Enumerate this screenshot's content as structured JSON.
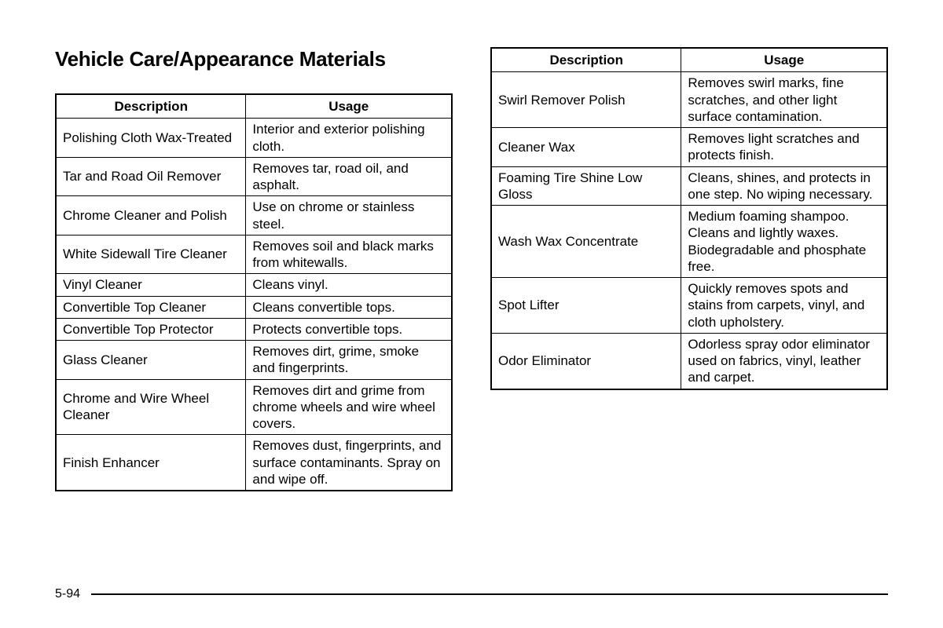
{
  "title": "Vehicle Care/Appearance Materials",
  "headers": {
    "desc": "Description",
    "usage": "Usage"
  },
  "pageNumber": "5-94",
  "tableLeft": {
    "rows": [
      {
        "desc": "Polishing Cloth Wax-Treated",
        "usage": "Interior and exterior polishing cloth."
      },
      {
        "desc": "Tar and Road Oil Remover",
        "usage": "Removes tar, road oil, and asphalt."
      },
      {
        "desc": "Chrome Cleaner and Polish",
        "usage": "Use on chrome or stainless steel."
      },
      {
        "desc": "White Sidewall Tire Cleaner",
        "usage": "Removes soil and black marks from whitewalls."
      },
      {
        "desc": "Vinyl Cleaner",
        "usage": "Cleans vinyl."
      },
      {
        "desc": "Convertible Top Cleaner",
        "usage": "Cleans convertible tops."
      },
      {
        "desc": "Convertible Top Protector",
        "usage": "Protects convertible tops."
      },
      {
        "desc": "Glass Cleaner",
        "usage": "Removes dirt, grime, smoke and fingerprints."
      },
      {
        "desc": "Chrome and Wire Wheel Cleaner",
        "usage": "Removes dirt and grime from chrome wheels and wire wheel covers."
      },
      {
        "desc": "Finish Enhancer",
        "usage": "Removes dust, fingerprints, and surface contaminants. Spray on and wipe off."
      }
    ]
  },
  "tableRight": {
    "rows": [
      {
        "desc": "Swirl Remover Polish",
        "usage": "Removes swirl marks, fine scratches, and other light surface contamination."
      },
      {
        "desc": "Cleaner Wax",
        "usage": "Removes light scratches and protects finish."
      },
      {
        "desc": "Foaming Tire Shine Low Gloss",
        "usage": "Cleans, shines, and protects in one step. No wiping necessary."
      },
      {
        "desc": "Wash Wax Concentrate",
        "usage": "Medium foaming shampoo. Cleans and lightly waxes. Biodegradable and phosphate free."
      },
      {
        "desc": "Spot Lifter",
        "usage": "Quickly removes spots and stains from carpets, vinyl, and cloth upholstery."
      },
      {
        "desc": "Odor Eliminator",
        "usage": "Odorless spray odor eliminator used on fabrics, vinyl, leather and carpet."
      }
    ]
  }
}
